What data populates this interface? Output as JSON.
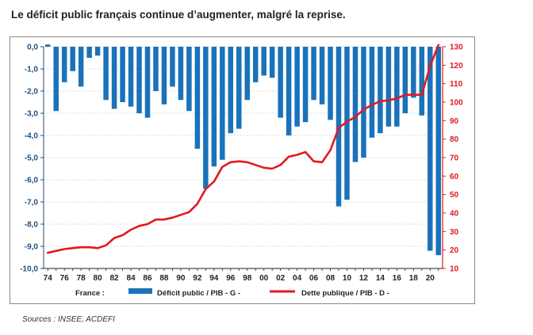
{
  "title": "Le déficit public français continue d’augmenter, malgré la reprise.",
  "source": "Sources : INSEE, ACDEFI",
  "colors": {
    "deficit": "#1a72ba",
    "debt": "#e3191f",
    "leftAxis": "#1f4e79",
    "rightAxis": "#e0181f"
  },
  "chart_data": {
    "type": "bar+line",
    "x": [
      1974,
      1975,
      1976,
      1977,
      1978,
      1979,
      1980,
      1981,
      1982,
      1983,
      1984,
      1985,
      1986,
      1987,
      1988,
      1989,
      1990,
      1991,
      1992,
      1993,
      1994,
      1995,
      1996,
      1997,
      1998,
      1999,
      2000,
      2001,
      2002,
      2003,
      2004,
      2005,
      2006,
      2007,
      2008,
      2009,
      2010,
      2011,
      2012,
      2013,
      2014,
      2015,
      2016,
      2017,
      2018,
      2019,
      2020,
      2021
    ],
    "xtick_labels": [
      "74",
      "76",
      "78",
      "80",
      "82",
      "84",
      "86",
      "88",
      "90",
      "92",
      "94",
      "96",
      "98",
      "00",
      "02",
      "04",
      "06",
      "08",
      "10",
      "12",
      "14",
      "16",
      "18",
      "20"
    ],
    "series": [
      {
        "name": "Déficit public / PIB - G -",
        "type": "bar",
        "axis": "left",
        "values": [
          0.1,
          -2.9,
          -1.6,
          -1.1,
          -1.8,
          -0.5,
          -0.4,
          -2.4,
          -2.8,
          -2.5,
          -2.7,
          -3.0,
          -3.2,
          -2.0,
          -2.6,
          -1.8,
          -2.4,
          -2.9,
          -4.6,
          -6.4,
          -5.4,
          -5.1,
          -3.9,
          -3.7,
          -2.4,
          -1.6,
          -1.3,
          -1.4,
          -3.2,
          -4.0,
          -3.6,
          -3.4,
          -2.4,
          -2.6,
          -3.3,
          -7.2,
          -6.9,
          -5.2,
          -5.0,
          -4.1,
          -3.9,
          -3.6,
          -3.6,
          -3.0,
          -2.3,
          -3.1,
          -9.2,
          -9.4
        ]
      },
      {
        "name": "Dette publique / PIB - D -",
        "type": "line",
        "axis": "right",
        "values": [
          18.5,
          19.5,
          20.5,
          21,
          21.5,
          21.5,
          21,
          22.5,
          26.5,
          28,
          31,
          33,
          34,
          36.5,
          36.5,
          37.5,
          39,
          40.5,
          45,
          53,
          57,
          65,
          67.5,
          68,
          67.5,
          66,
          64.5,
          64,
          66,
          70.5,
          71.5,
          73,
          68,
          67.5,
          74,
          86,
          89.5,
          92,
          96,
          98.5,
          100.5,
          101,
          102,
          104,
          104,
          104,
          119.5,
          131
        ]
      }
    ],
    "left_axis": {
      "min": -10,
      "max": 0,
      "ticks": [
        "0,0",
        "-1,0",
        "-2,0",
        "-3,0",
        "-4,0",
        "-5,0",
        "-6,0",
        "-7,0",
        "-8,0",
        "-9,0",
        "-10,0"
      ]
    },
    "right_axis": {
      "min": 10,
      "max": 130,
      "ticks": [
        "130",
        "120",
        "110",
        "100",
        "90",
        "80",
        "70",
        "60",
        "50",
        "40",
        "30",
        "20",
        "10"
      ]
    },
    "legend": {
      "prefix": "France :",
      "bar_label": "Déficit public / PIB - G -",
      "line_label": "Dette publique / PIB - D -",
      "position": "bottom"
    }
  }
}
